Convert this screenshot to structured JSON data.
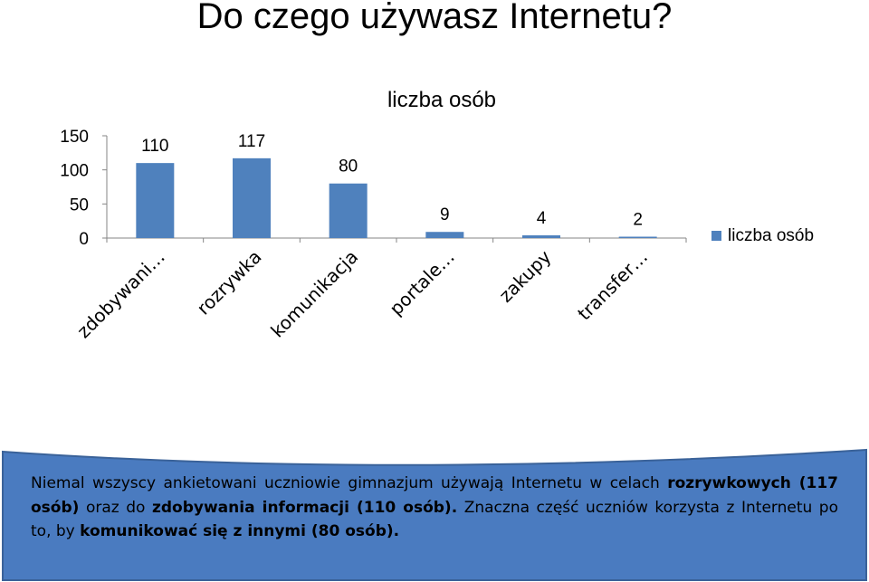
{
  "slide_title": "Do czego używasz Internetu?",
  "chart_data": {
    "type": "bar",
    "title": "liczba osób",
    "categories": [
      "zdobywani…",
      "rozrywka",
      "komunikacja",
      "portale…",
      "zakupy",
      "transfer…"
    ],
    "series": [
      {
        "name": "liczba osób",
        "values": [
          110,
          117,
          80,
          9,
          4,
          2
        ],
        "color": "#4f81bd"
      }
    ],
    "data_labels": [
      "110",
      "117",
      "80",
      "9",
      "4",
      "2"
    ],
    "ylim": [
      0,
      150
    ],
    "y_ticks": [
      0,
      50,
      100,
      150
    ],
    "y_tick_labels": [
      "0",
      "50",
      "100",
      "150"
    ],
    "grid": false,
    "legend": "right",
    "legend_entry": "liczba osób",
    "xlabel": "",
    "ylabel": ""
  },
  "callout": {
    "color": "#4a7bc0",
    "border_color": "#3a6299",
    "text_1": "Niemal wszyscy ankietowani uczniowie gimnazjum używają Internetu w celach ",
    "bold_1": "rozrywkowych (117 osób)",
    "text_2": " oraz do ",
    "bold_2": "zdobywania informacji (110 osób).",
    "text_3": " Znaczna część uczniów korzysta z Internetu po to, by ",
    "bold_3": "komunikować się z innymi (80 osób)."
  }
}
